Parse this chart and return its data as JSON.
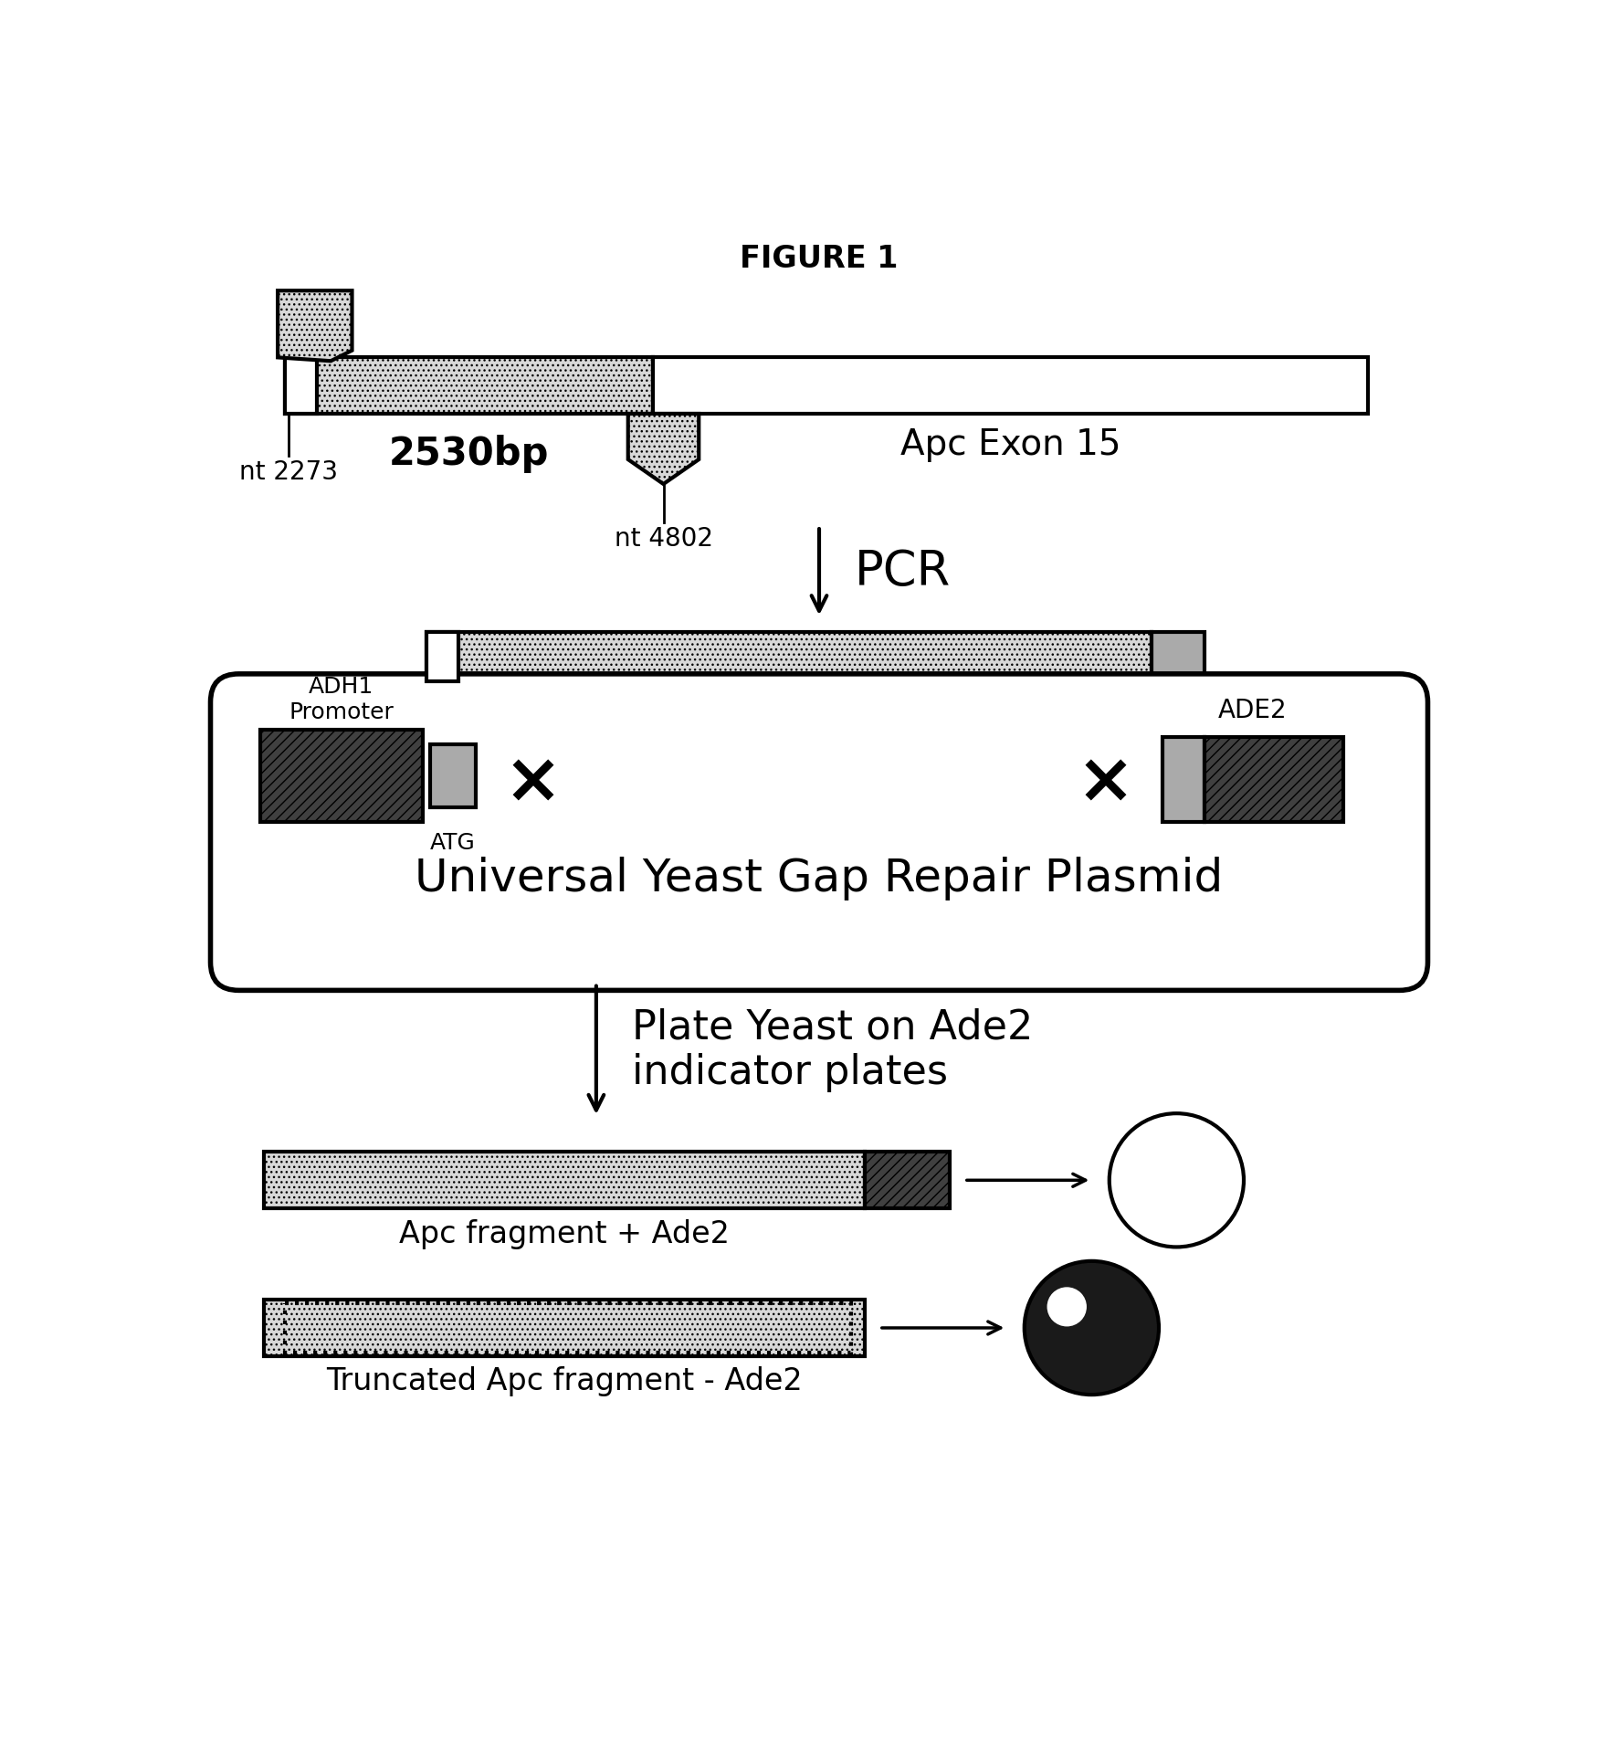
{
  "title": "FIGURE 1",
  "title_fontsize": 24,
  "title_fontweight": "bold",
  "bg_color": "#ffffff",
  "panel1": {
    "label_2530bp": "2530bp",
    "label_exon": "Apc Exon 15",
    "label_nt2273": "nt 2273",
    "label_nt4802": "nt 4802"
  },
  "panel2": {
    "pcr_label": "PCR"
  },
  "panel3": {
    "plasmid_label": "Universal Yeast Gap Repair Plasmid",
    "adh1_label": "ADH1\nPromoter",
    "atg_label": "ATG",
    "ade2_label": "ADE2"
  },
  "panel4": {
    "plate_label": "Plate Yeast on Ade2\nindicator plates"
  },
  "panel5": {
    "bar1_label": "Apc fragment + Ade2",
    "bar2_label": "Truncated Apc fragment - Ade2"
  }
}
